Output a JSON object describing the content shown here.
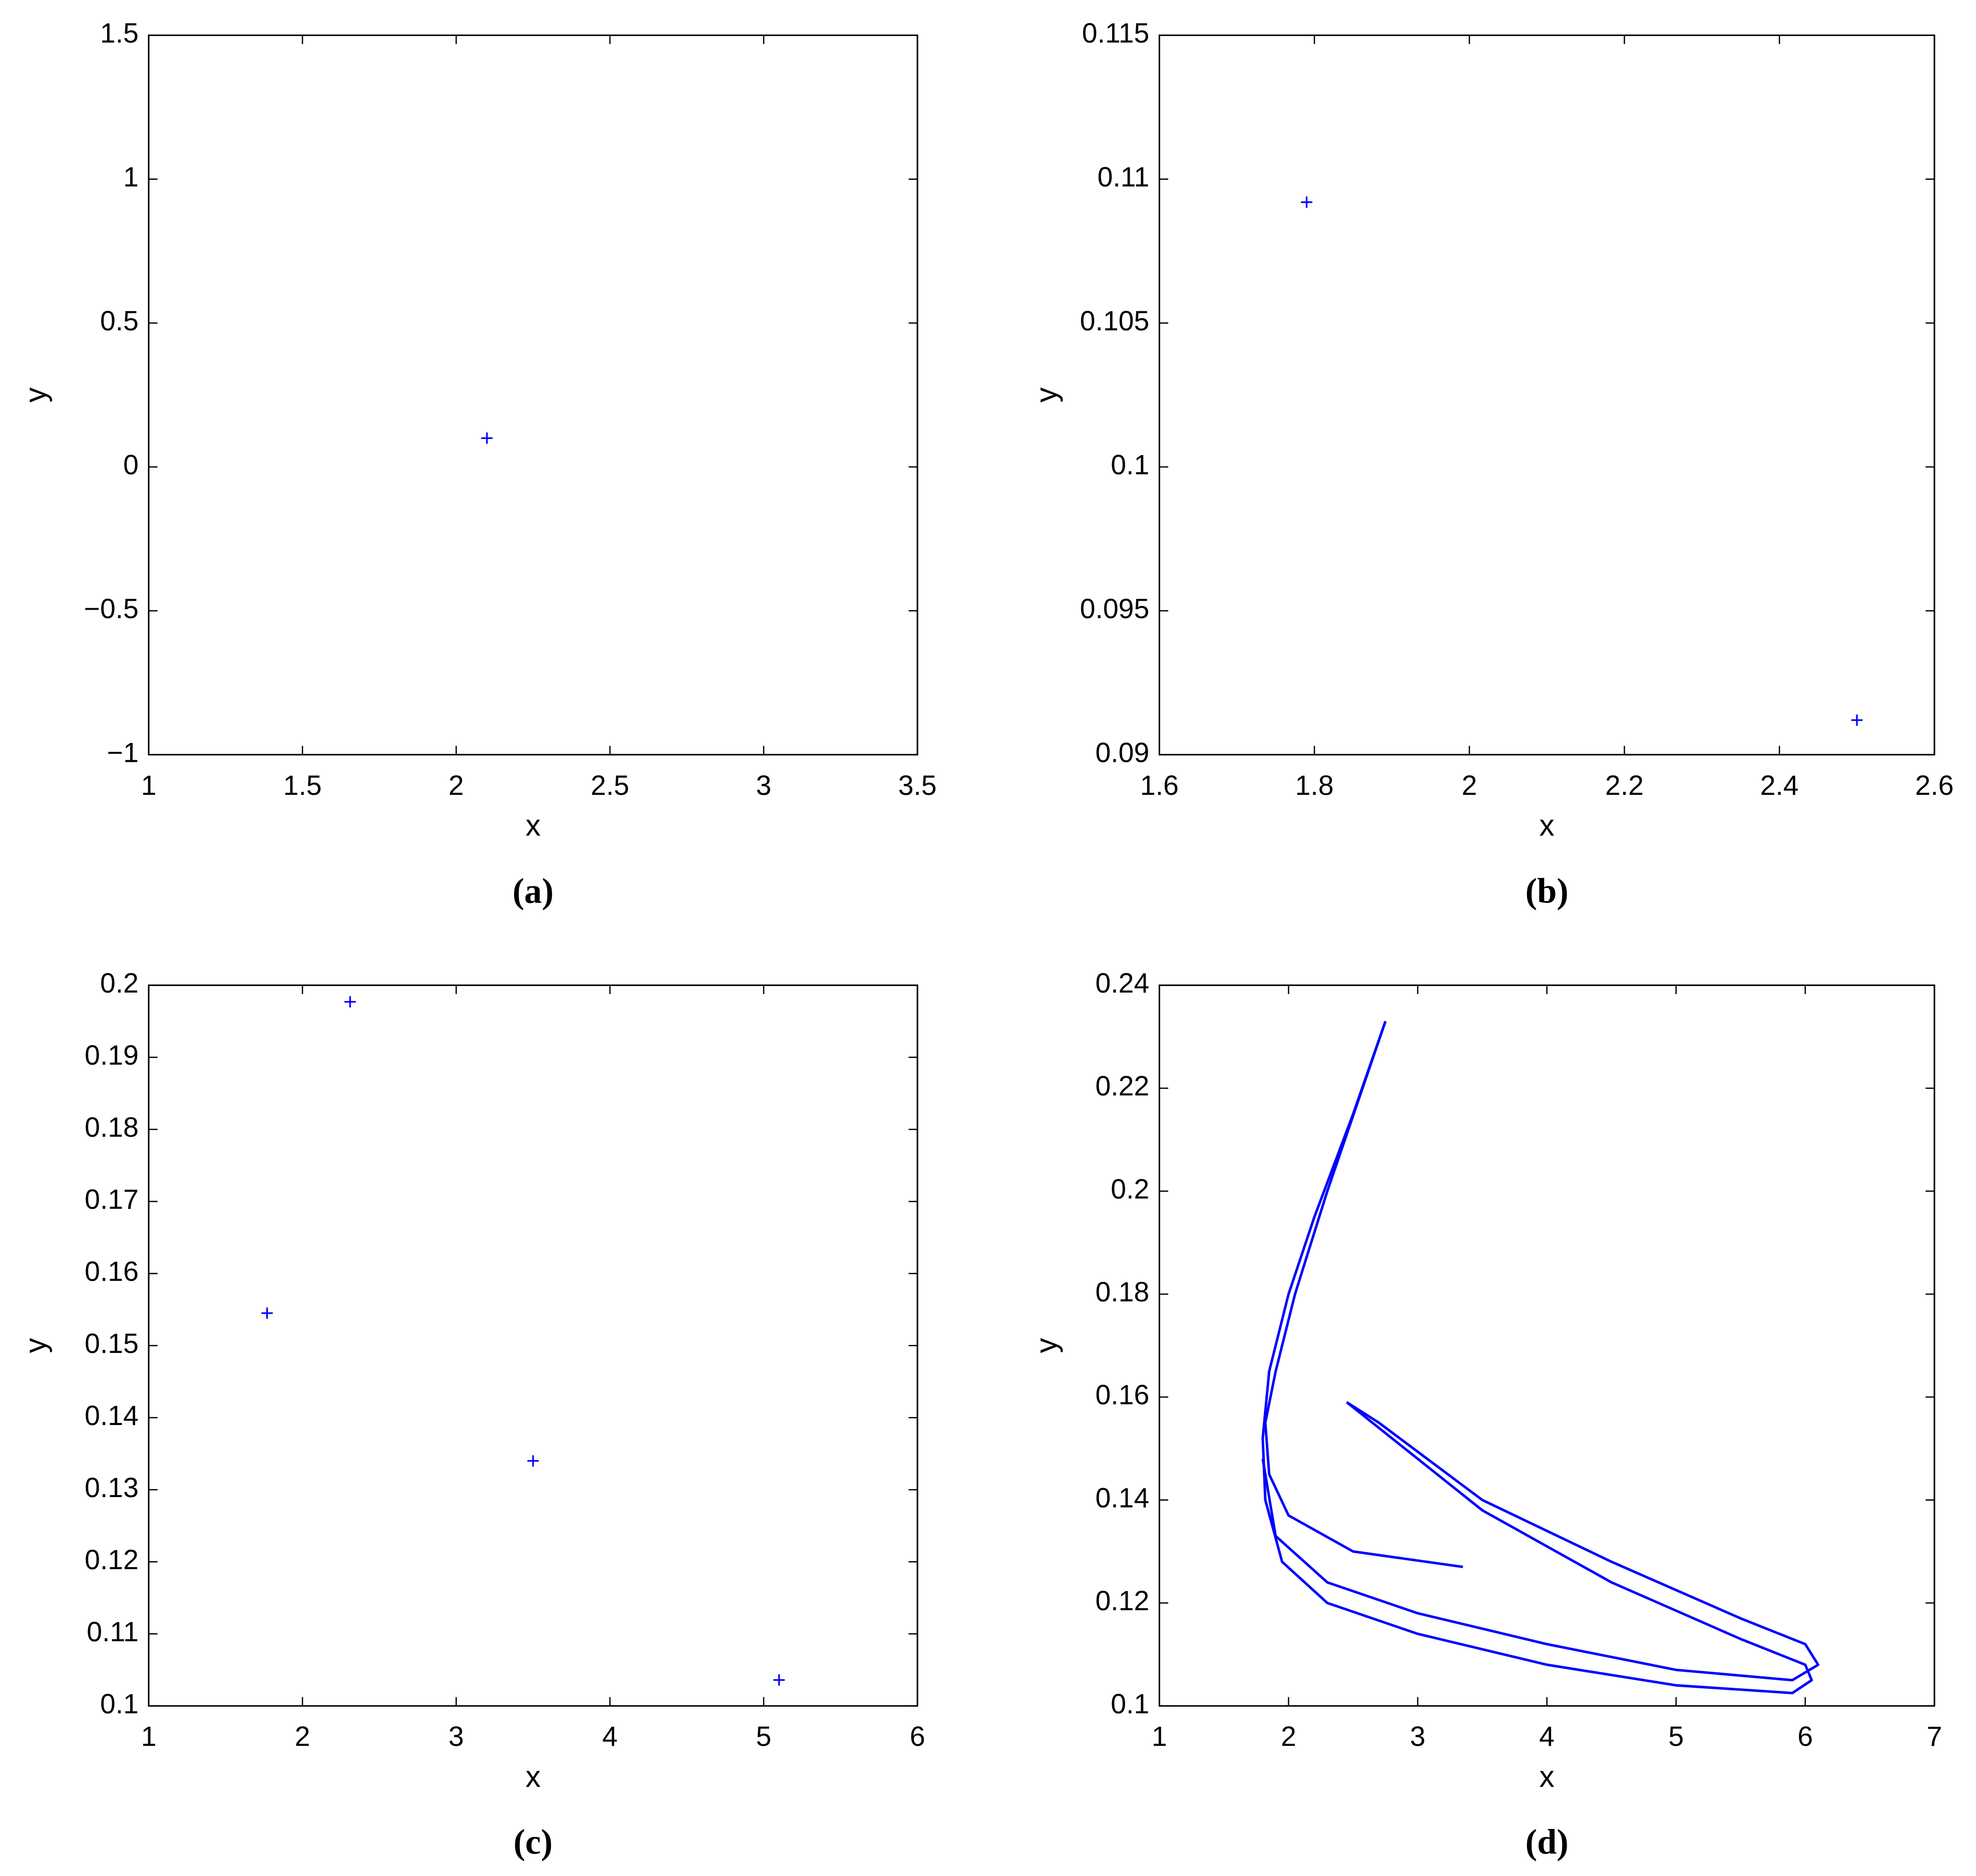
{
  "chart_data": [
    {
      "type": "scatter",
      "caption": "(a)",
      "xlabel": "x",
      "ylabel": "y",
      "color": "#0000ff",
      "x": [
        2.1
      ],
      "values": [
        0.1
      ],
      "xlim": [
        1,
        3.5
      ],
      "ylim": [
        -1,
        1.5
      ],
      "xticks": [
        1,
        1.5,
        2,
        2.5,
        3,
        3.5
      ],
      "yticks": [
        {
          "value": -1,
          "label": "−1"
        },
        {
          "value": -0.5,
          "label": "−0.5"
        },
        0,
        0.5,
        1,
        1.5
      ]
    },
    {
      "type": "scatter",
      "caption": "(b)",
      "xlabel": "x",
      "ylabel": "y",
      "color": "#0000ff",
      "x": [
        1.79,
        2.5
      ],
      "values": [
        0.1092,
        0.0912
      ],
      "xlim": [
        1.6,
        2.6
      ],
      "ylim": [
        0.09,
        0.115
      ],
      "xticks": [
        1.6,
        1.8,
        2,
        2.2,
        2.4,
        2.6
      ],
      "yticks": [
        0.09,
        0.095,
        0.1,
        0.105,
        0.11,
        0.115
      ]
    },
    {
      "type": "scatter",
      "caption": "(c)",
      "xlabel": "x",
      "ylabel": "y",
      "color": "#0000ff",
      "x": [
        1.77,
        2.31,
        3.5,
        5.1
      ],
      "values": [
        0.1545,
        0.1977,
        0.134,
        0.1036
      ],
      "xlim": [
        1,
        6
      ],
      "ylim": [
        0.1,
        0.2
      ],
      "xticks": [
        1,
        2,
        3,
        4,
        5,
        6
      ],
      "yticks": [
        0.1,
        0.11,
        0.12,
        0.13,
        0.14,
        0.15,
        0.16,
        0.17,
        0.18,
        0.19,
        0.2
      ]
    },
    {
      "type": "line",
      "caption": "(d)",
      "xlabel": "x",
      "ylabel": "y",
      "series": [
        {
          "color": "#0000ff",
          "x": [
            2.75,
            2.5,
            2.2,
            2.0,
            1.85,
            1.8,
            1.82,
            1.95,
            2.3,
            3,
            4,
            5,
            5.9,
            6.05,
            6.0,
            5.5,
            4.5,
            3.5,
            2.8,
            2.45
          ],
          "values": [
            0.233,
            0.215,
            0.195,
            0.18,
            0.165,
            0.152,
            0.14,
            0.128,
            0.12,
            0.114,
            0.108,
            0.104,
            0.1025,
            0.105,
            0.108,
            0.113,
            0.124,
            0.138,
            0.152,
            0.159
          ]
        },
        {
          "color": "#0000ff",
          "x": [
            2.75,
            2.6,
            2.3,
            2.05,
            1.9,
            1.82,
            1.85,
            2.0,
            2.5,
            3.35
          ],
          "values": [
            0.233,
            0.222,
            0.2,
            0.18,
            0.165,
            0.155,
            0.145,
            0.137,
            0.13,
            0.127
          ]
        },
        {
          "color": "#0000ff",
          "x": [
            1.8,
            1.9,
            2.3,
            3,
            4,
            5,
            5.9,
            6.1,
            6.0,
            5.5,
            4.5,
            3.5,
            2.7,
            2.45
          ],
          "values": [
            0.148,
            0.133,
            0.124,
            0.118,
            0.112,
            0.107,
            0.105,
            0.108,
            0.112,
            0.117,
            0.128,
            0.14,
            0.155,
            0.159
          ]
        }
      ],
      "xlim": [
        1,
        7
      ],
      "ylim": [
        0.1,
        0.24
      ],
      "xticks": [
        1,
        2,
        3,
        4,
        5,
        6,
        7
      ],
      "yticks": [
        0.1,
        0.12,
        0.14,
        0.16,
        0.18,
        0.2,
        0.22,
        0.24
      ]
    }
  ]
}
